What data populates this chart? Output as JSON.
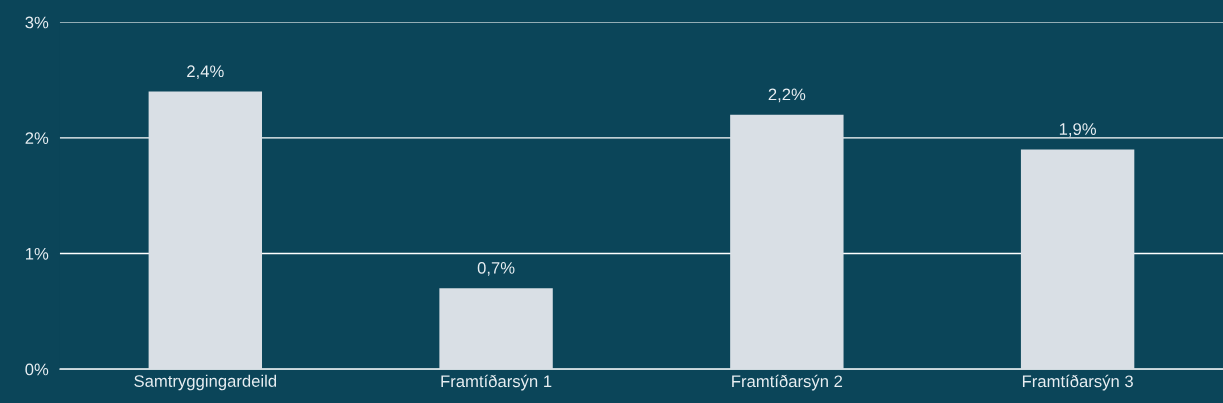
{
  "chart_data": {
    "type": "bar",
    "categories": [
      "Samtryggingardeild",
      "Framtíðarsýn 1",
      "Framtíðarsýn 2",
      "Framtíðarsýn 3"
    ],
    "values": [
      2.4,
      0.7,
      2.2,
      1.9
    ],
    "value_labels": [
      "2,4%",
      "0,7%",
      "2,2%",
      "1,9%"
    ],
    "color": "#d9dfe5",
    "ylim": [
      0,
      3
    ],
    "yticks": [
      {
        "value": 0,
        "label": "0%"
      },
      {
        "value": 1,
        "label": "1%"
      },
      {
        "value": 2,
        "label": "2%"
      },
      {
        "value": 3,
        "label": "3%"
      }
    ],
    "grid": "y",
    "legend": false
  }
}
